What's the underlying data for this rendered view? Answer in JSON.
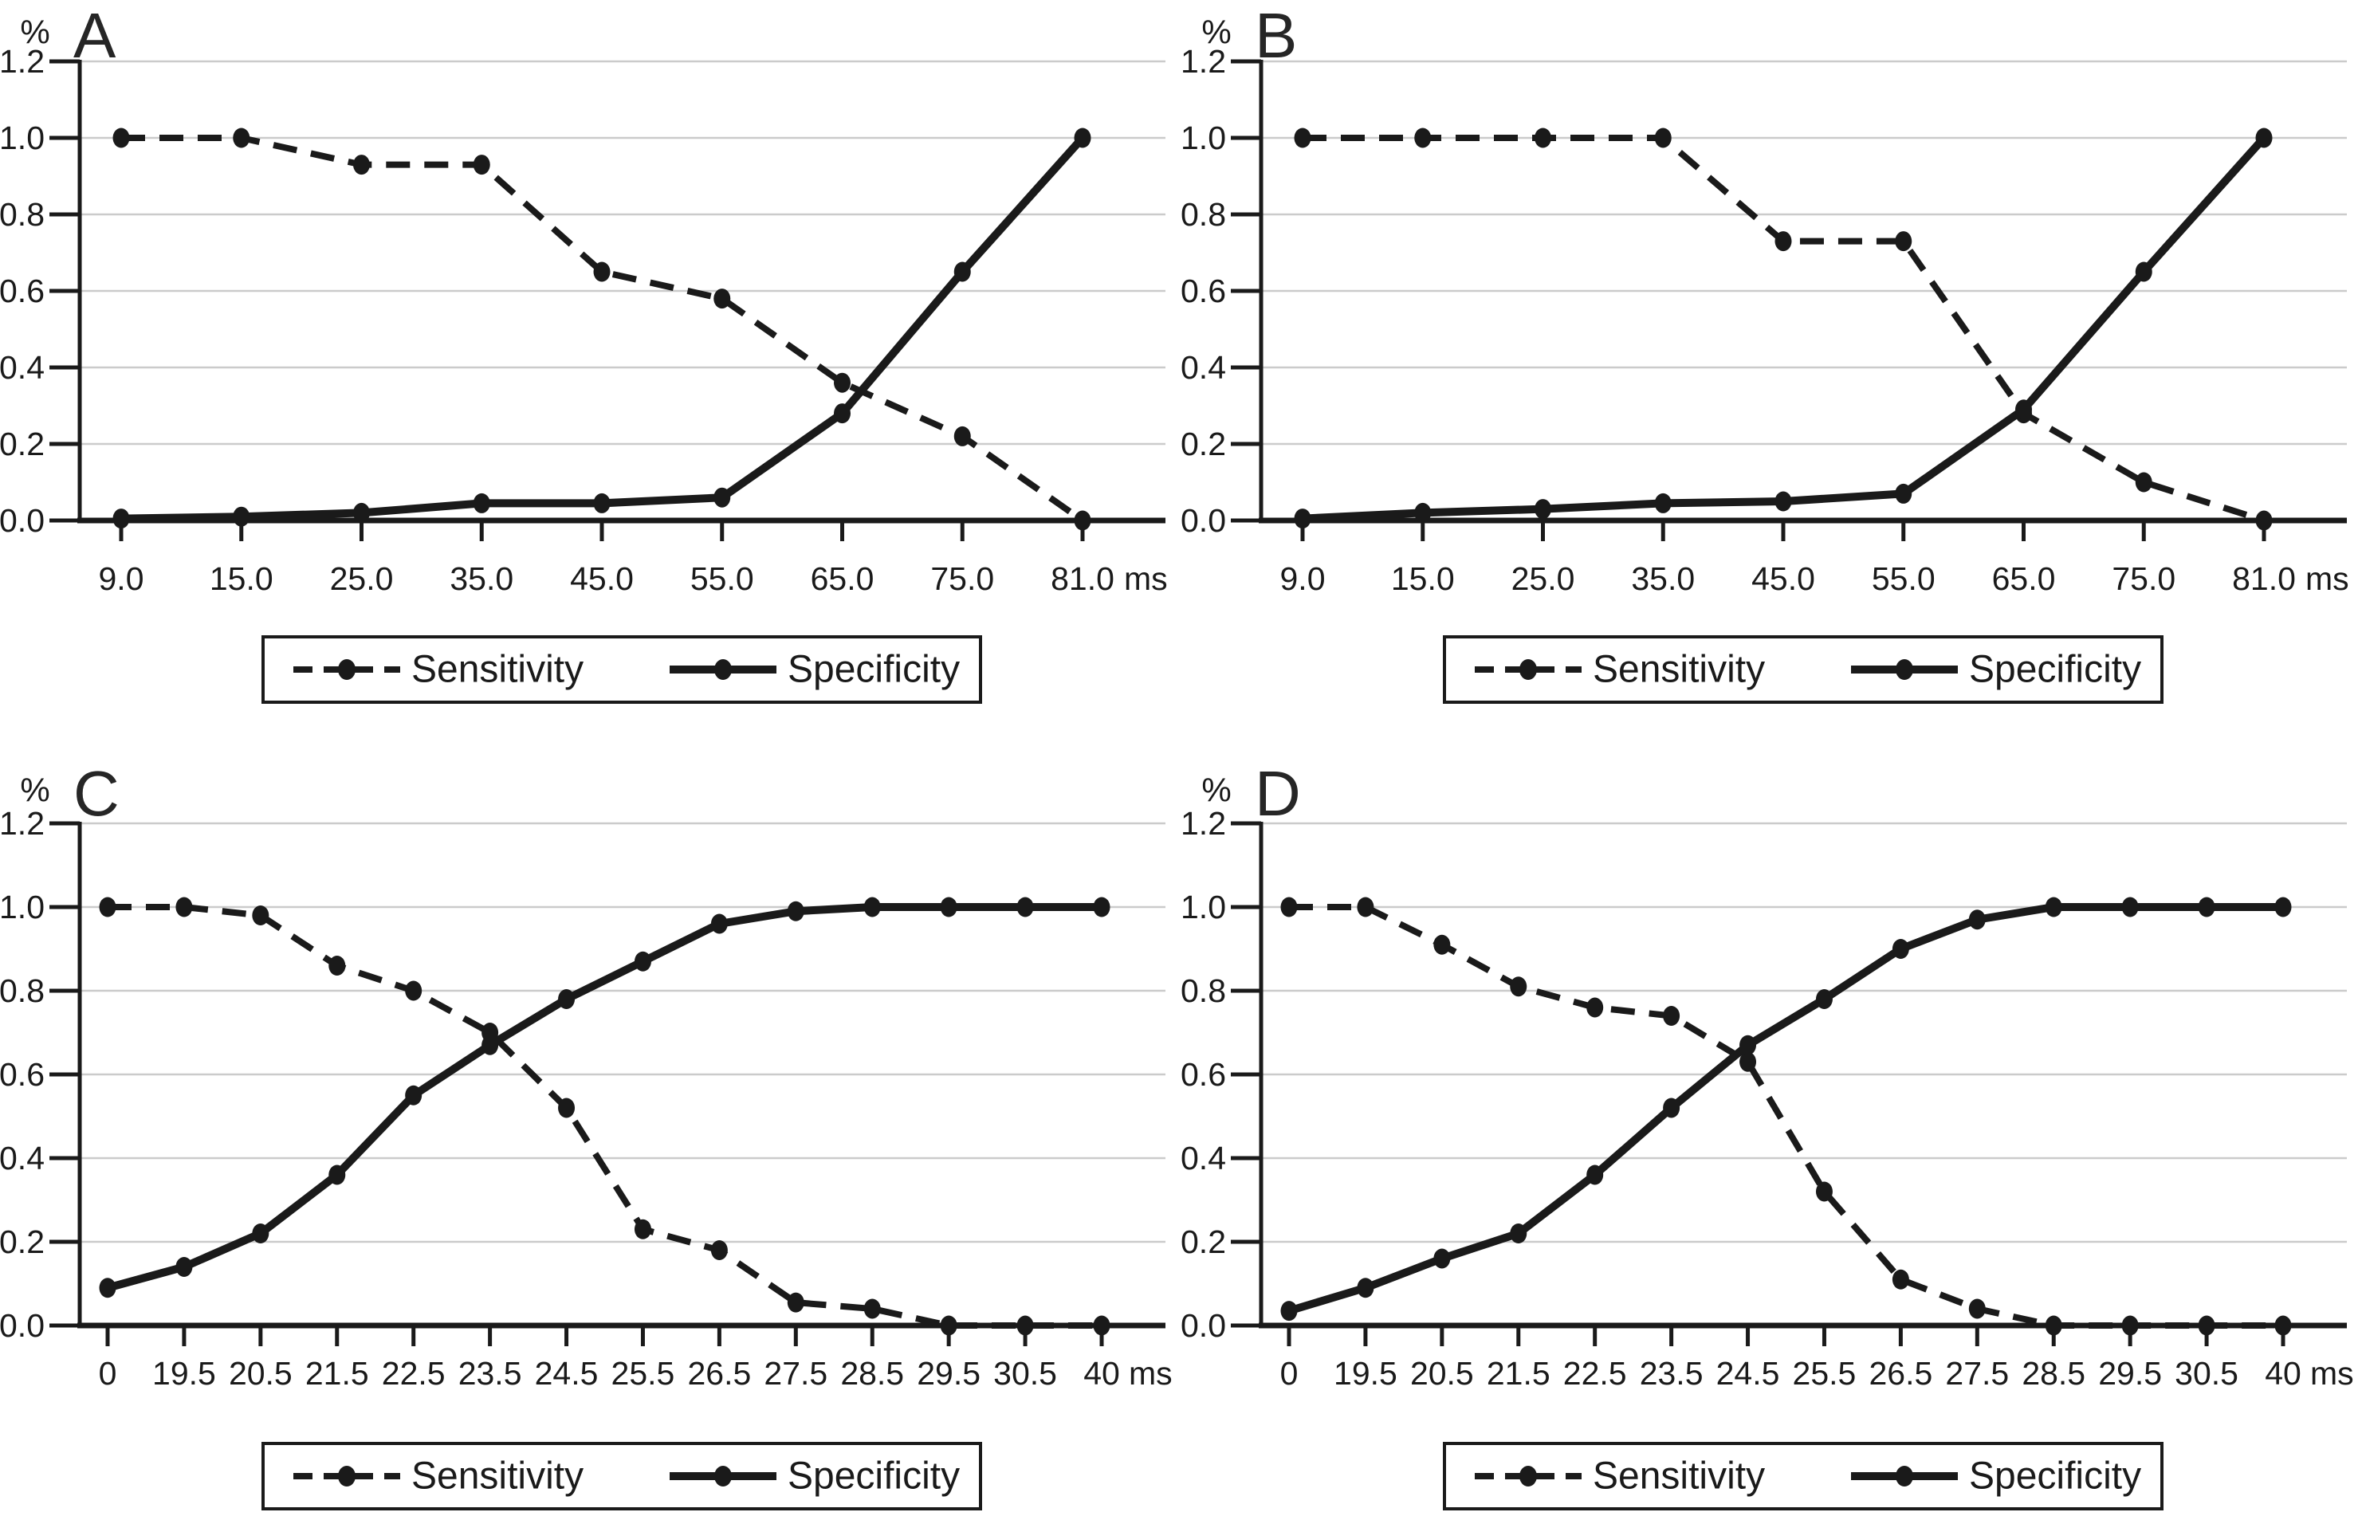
{
  "figure": {
    "y_axis_symbol": "%",
    "x_unit": "ms",
    "legend": {
      "sensitivity_label": "Sensitivity",
      "specificity_label": "Specificity"
    },
    "colors": {
      "ink": "#1a1a1a",
      "grid": "#cbcbcb",
      "background": "#ffffff"
    }
  },
  "chart_data": [
    {
      "panel": "A",
      "type": "line",
      "xlabel": "ms",
      "ylabel": "%",
      "ylim": [
        0.0,
        1.2
      ],
      "yticks": [
        "0.0",
        "0.2",
        "0.4",
        "0.6",
        "0.8",
        "1.0",
        "1.2"
      ],
      "grid": true,
      "legend_position": "bottom",
      "categories": [
        "9.0",
        "15.0",
        "25.0",
        "35.0",
        "45.0",
        "55.0",
        "65.0",
        "75.0",
        "81.0"
      ],
      "series": [
        {
          "name": "Sensitivity",
          "style": "dashed",
          "values": [
            1.0,
            1.0,
            0.93,
            0.93,
            0.65,
            0.58,
            0.36,
            0.22,
            0.0
          ]
        },
        {
          "name": "Specificity",
          "style": "solid",
          "values": [
            0.005,
            0.01,
            0.02,
            0.045,
            0.045,
            0.06,
            0.28,
            0.65,
            1.0
          ]
        }
      ]
    },
    {
      "panel": "B",
      "type": "line",
      "xlabel": "ms",
      "ylabel": "%",
      "ylim": [
        0.0,
        1.2
      ],
      "yticks": [
        "0.0",
        "0.2",
        "0.4",
        "0.6",
        "0.8",
        "1.0",
        "1.2"
      ],
      "grid": true,
      "legend_position": "bottom",
      "categories": [
        "9.0",
        "15.0",
        "25.0",
        "35.0",
        "45.0",
        "55.0",
        "65.0",
        "75.0",
        "81.0"
      ],
      "series": [
        {
          "name": "Sensitivity",
          "style": "dashed",
          "values": [
            1.0,
            1.0,
            1.0,
            1.0,
            0.73,
            0.73,
            0.28,
            0.1,
            0.0
          ]
        },
        {
          "name": "Specificity",
          "style": "solid",
          "values": [
            0.005,
            0.02,
            0.03,
            0.045,
            0.05,
            0.07,
            0.29,
            0.65,
            1.0
          ]
        }
      ]
    },
    {
      "panel": "C",
      "type": "line",
      "xlabel": "ms",
      "ylabel": "%",
      "ylim": [
        0.0,
        1.2
      ],
      "yticks": [
        "0.0",
        "0.2",
        "0.4",
        "0.6",
        "0.8",
        "1.0",
        "1.2"
      ],
      "grid": true,
      "legend_position": "bottom",
      "categories": [
        "0",
        "19.5",
        "20.5",
        "21.5",
        "22.5",
        "23.5",
        "24.5",
        "25.5",
        "26.5",
        "27.5",
        "28.5",
        "29.5",
        "30.5",
        "40"
      ],
      "series": [
        {
          "name": "Sensitivity",
          "style": "dashed",
          "values": [
            1.0,
            1.0,
            0.98,
            0.86,
            0.8,
            0.7,
            0.52,
            0.23,
            0.18,
            0.055,
            0.04,
            0.0,
            0.0,
            0.0
          ]
        },
        {
          "name": "Specificity",
          "style": "solid",
          "values": [
            0.09,
            0.14,
            0.22,
            0.36,
            0.55,
            0.67,
            0.78,
            0.87,
            0.96,
            0.99,
            1.0,
            1.0,
            1.0,
            1.0
          ]
        }
      ]
    },
    {
      "panel": "D",
      "type": "line",
      "xlabel": "ms",
      "ylabel": "%",
      "ylim": [
        0.0,
        1.2
      ],
      "yticks": [
        "0.0",
        "0.2",
        "0.4",
        "0.6",
        "0.8",
        "1.0",
        "1.2"
      ],
      "grid": true,
      "legend_position": "bottom",
      "categories": [
        "0",
        "19.5",
        "20.5",
        "21.5",
        "22.5",
        "23.5",
        "24.5",
        "25.5",
        "26.5",
        "27.5",
        "28.5",
        "29.5",
        "30.5",
        "40"
      ],
      "series": [
        {
          "name": "Sensitivity",
          "style": "dashed",
          "values": [
            1.0,
            1.0,
            0.91,
            0.81,
            0.76,
            0.74,
            0.63,
            0.32,
            0.11,
            0.04,
            0.0,
            0.0,
            0.0,
            0.0
          ]
        },
        {
          "name": "Specificity",
          "style": "solid",
          "values": [
            0.035,
            0.09,
            0.16,
            0.22,
            0.36,
            0.52,
            0.67,
            0.78,
            0.9,
            0.97,
            1.0,
            1.0,
            1.0,
            1.0
          ]
        }
      ]
    }
  ]
}
